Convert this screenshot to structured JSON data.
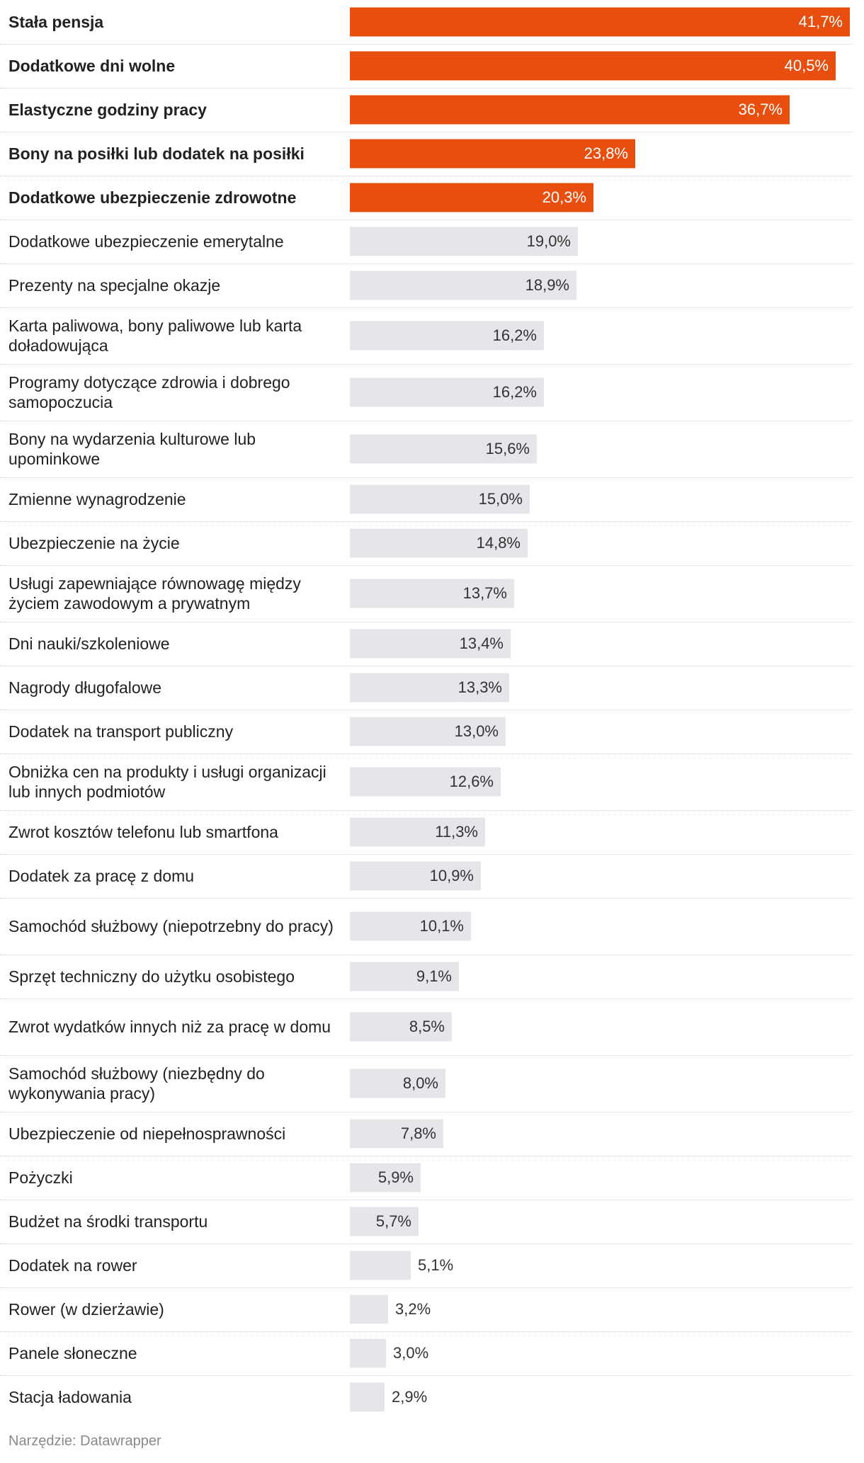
{
  "chart_data": {
    "type": "bar",
    "orientation": "horizontal",
    "title": "",
    "xlabel": "",
    "ylabel": "",
    "xlim": [
      0,
      41.7
    ],
    "highlight_color": "#e84f0f",
    "base_color": "#e6e6ea",
    "categories": [
      "Stała pensja",
      "Dodatkowe dni wolne",
      "Elastyczne godziny pracy",
      "Bony na posiłki lub dodatek na posiłki",
      "Dodatkowe ubezpieczenie zdrowotne",
      "Dodatkowe ubezpieczenie emerytalne",
      "Prezenty na specjalne okazje",
      "Karta paliwowa, bony paliwowe lub karta doładowująca",
      "Programy dotyczące zdrowia i dobrego samopoczucia",
      "Bony na wydarzenia kulturowe lub upominkowe",
      "Zmienne wynagrodzenie",
      "Ubezpieczenie na życie",
      "Usługi zapewniające równowagę między życiem zawodowym a prywatnym",
      "Dni nauki/szkoleniowe",
      "Nagrody długofalowe",
      "Dodatek na transport publiczny",
      "Obniżka cen na produkty i usługi organizacji lub innych podmiotów",
      "Zwrot kosztów telefonu lub smartfona",
      "Dodatek za pracę z domu",
      "Samochód służbowy (niepotrzebny do pracy)",
      "Sprzęt techniczny do użytku osobistego",
      "Zwrot wydatków innych niż za pracę w domu",
      "Samochód służbowy (niezbędny do wykonywania pracy)",
      "Ubezpieczenie od niepełnosprawności",
      "Pożyczki",
      "Budżet na środki transportu",
      "Dodatek na rower",
      "Rower (w dzierżawie)",
      "Panele słoneczne",
      "Stacja ładowania"
    ],
    "values": [
      41.7,
      40.5,
      36.7,
      23.8,
      20.3,
      19.0,
      18.9,
      16.2,
      16.2,
      15.6,
      15.0,
      14.8,
      13.7,
      13.4,
      13.3,
      13.0,
      12.6,
      11.3,
      10.9,
      10.1,
      9.1,
      8.5,
      8.0,
      7.8,
      5.9,
      5.7,
      5.1,
      3.2,
      3.0,
      2.9
    ],
    "value_labels": [
      "41,7%",
      "40,5%",
      "36,7%",
      "23,8%",
      "20,3%",
      "19,0%",
      "18,9%",
      "16,2%",
      "16,2%",
      "15,6%",
      "15,0%",
      "14,8%",
      "13,7%",
      "13,4%",
      "13,3%",
      "13,0%",
      "12,6%",
      "11,3%",
      "10,9%",
      "10,1%",
      "9,1%",
      "8,5%",
      "8,0%",
      "7,8%",
      "5,9%",
      "5,7%",
      "5,1%",
      "3,2%",
      "3,0%",
      "2,9%"
    ],
    "highlighted": [
      true,
      true,
      true,
      true,
      true,
      false,
      false,
      false,
      false,
      false,
      false,
      false,
      false,
      false,
      false,
      false,
      false,
      false,
      false,
      false,
      false,
      false,
      false,
      false,
      false,
      false,
      false,
      false,
      false,
      false
    ],
    "two_line": [
      false,
      false,
      false,
      false,
      false,
      false,
      false,
      true,
      true,
      true,
      false,
      false,
      true,
      false,
      false,
      false,
      true,
      false,
      false,
      true,
      false,
      true,
      true,
      false,
      false,
      false,
      false,
      false,
      false,
      false
    ]
  },
  "footer": {
    "source": "Narzędzie: Datawrapper"
  }
}
